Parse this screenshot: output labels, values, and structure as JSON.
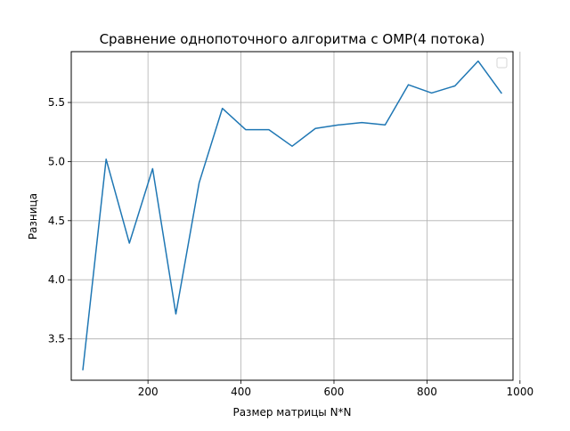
{
  "chart_data": {
    "type": "line",
    "title": "Сравнение однопоточного алгоритма с OMP(4 потока)",
    "xlabel": "Размер матрицы N*N",
    "ylabel": "Разница",
    "xlim": [
      35,
      985
    ],
    "ylim": [
      3.15,
      5.93
    ],
    "x_ticks": [
      200,
      400,
      600,
      800,
      1000
    ],
    "y_ticks": [
      3.5,
      4.0,
      4.5,
      5.0,
      5.5
    ],
    "grid": true,
    "legend": "top-right",
    "series": [
      {
        "color": "#1f77b4",
        "x": [
          60,
          110,
          160,
          210,
          260,
          310,
          360,
          410,
          460,
          510,
          560,
          610,
          660,
          710,
          760,
          810,
          860,
          910,
          960
        ],
        "y": [
          3.24,
          5.02,
          4.31,
          4.94,
          3.71,
          4.82,
          5.45,
          5.27,
          5.27,
          5.13,
          5.28,
          5.31,
          5.33,
          5.31,
          5.65,
          5.58,
          5.64,
          5.85,
          5.58
        ]
      }
    ]
  }
}
